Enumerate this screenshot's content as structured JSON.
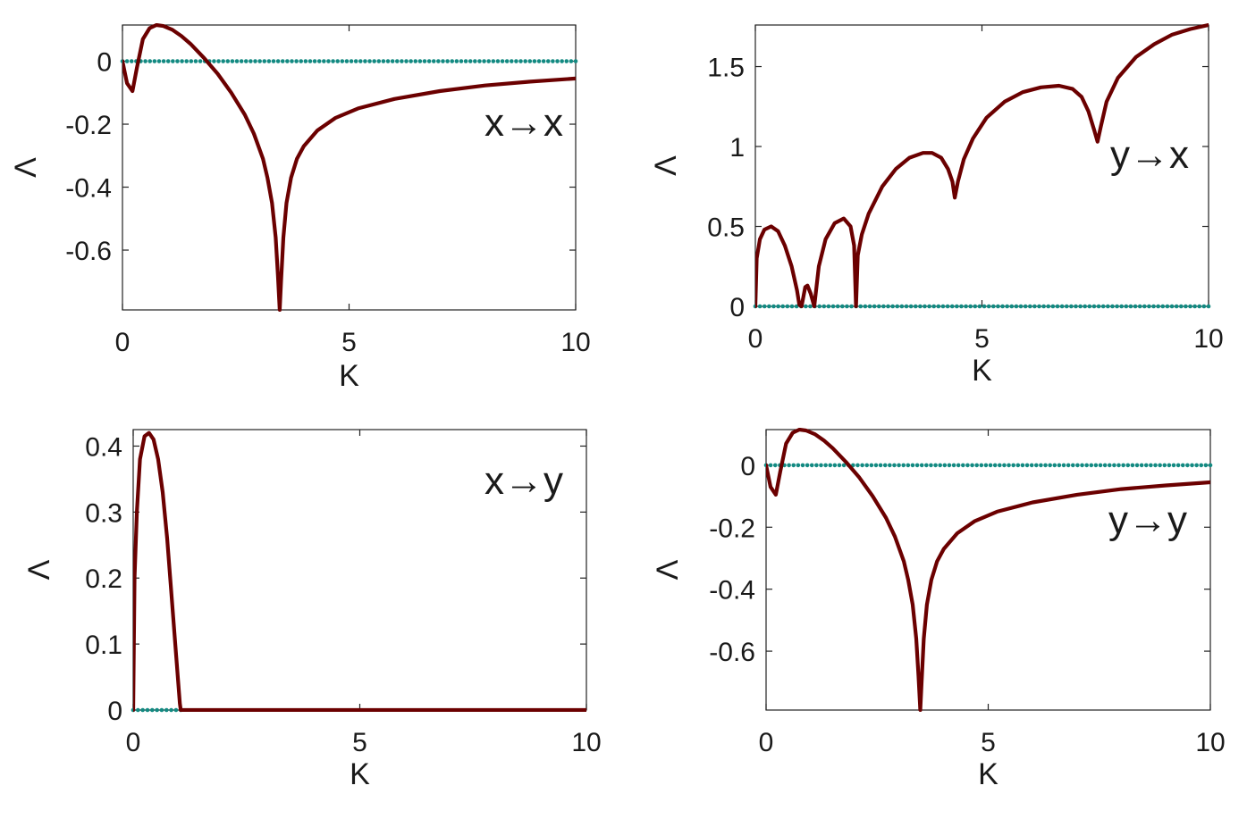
{
  "colors": {
    "curve": "#6b0000",
    "dotted": "#138a82",
    "axis": "#222222"
  },
  "chart_data": [
    {
      "type": "line",
      "label": "x→x",
      "xlabel": "K",
      "ylabel": "Λ",
      "xlim": [
        0,
        10
      ],
      "ylim": [
        -0.79,
        0.115
      ],
      "xticks": [
        0,
        5,
        10
      ],
      "yticks": [
        0,
        -0.2,
        -0.4,
        -0.6
      ],
      "xtick_labels": [
        "0",
        "5",
        "10"
      ],
      "ytick_labels": [
        "0",
        "-0.2",
        "-0.4",
        "-0.6"
      ],
      "grid": false,
      "series": [
        {
          "style": "solid",
          "x": [
            0,
            0.1,
            0.22,
            0.32,
            0.45,
            0.6,
            0.75,
            0.9,
            1.1,
            1.3,
            1.5,
            1.8,
            2.1,
            2.4,
            2.7,
            2.9,
            3.1,
            3.2,
            3.3,
            3.38,
            3.43,
            3.47,
            3.5,
            3.55,
            3.62,
            3.72,
            3.85,
            4.0,
            4.3,
            4.7,
            5.2,
            6,
            7,
            8,
            9,
            10
          ],
          "y": [
            0,
            -0.07,
            -0.095,
            -0.02,
            0.07,
            0.105,
            0.115,
            0.112,
            0.1,
            0.08,
            0.055,
            0.01,
            -0.04,
            -0.1,
            -0.17,
            -0.23,
            -0.31,
            -0.37,
            -0.45,
            -0.56,
            -0.68,
            -0.79,
            -0.7,
            -0.56,
            -0.45,
            -0.37,
            -0.31,
            -0.27,
            -0.22,
            -0.18,
            -0.15,
            -0.12,
            -0.095,
            -0.077,
            -0.065,
            -0.055
          ]
        },
        {
          "style": "dotted",
          "x": [
            0,
            10
          ],
          "y": [
            0,
            0
          ]
        }
      ]
    },
    {
      "type": "line",
      "label": "y→x",
      "xlabel": "K",
      "ylabel": "Λ",
      "xlim": [
        0,
        10
      ],
      "ylim": [
        0,
        1.76
      ],
      "xticks": [
        0,
        5,
        10
      ],
      "yticks": [
        0,
        0.5,
        1,
        1.5
      ],
      "xtick_labels": [
        "0",
        "5",
        "10"
      ],
      "ytick_labels": [
        "0",
        "0.5",
        "1",
        "1.5"
      ],
      "grid": false,
      "series": [
        {
          "style": "solid",
          "x": [
            0,
            0.03,
            0.1,
            0.2,
            0.35,
            0.5,
            0.65,
            0.8,
            0.92,
            0.97,
            1.02,
            1.1,
            1.15,
            1.22,
            1.3,
            1.4,
            1.55,
            1.75,
            1.95,
            2.1,
            2.18,
            2.22,
            2.26,
            2.35,
            2.5,
            2.8,
            3.1,
            3.4,
            3.7,
            3.9,
            4.1,
            4.25,
            4.35,
            4.4,
            4.47,
            4.6,
            4.8,
            5.1,
            5.5,
            5.9,
            6.3,
            6.7,
            7.0,
            7.2,
            7.35,
            7.48,
            7.55,
            7.62,
            7.75,
            8.0,
            8.4,
            8.8,
            9.2,
            9.6,
            10
          ],
          "y": [
            0,
            0.3,
            0.42,
            0.48,
            0.5,
            0.47,
            0.38,
            0.25,
            0.1,
            0.01,
            0.0,
            0.12,
            0.13,
            0.08,
            0.0,
            0.25,
            0.42,
            0.52,
            0.55,
            0.5,
            0.38,
            0.0,
            0.32,
            0.45,
            0.58,
            0.75,
            0.86,
            0.93,
            0.96,
            0.96,
            0.93,
            0.86,
            0.78,
            0.68,
            0.78,
            0.92,
            1.05,
            1.18,
            1.28,
            1.34,
            1.37,
            1.38,
            1.36,
            1.31,
            1.22,
            1.1,
            1.03,
            1.12,
            1.28,
            1.43,
            1.56,
            1.64,
            1.7,
            1.735,
            1.76
          ]
        },
        {
          "style": "dotted",
          "x": [
            0,
            10
          ],
          "y": [
            0,
            0
          ]
        }
      ]
    },
    {
      "type": "line",
      "label": "x→y",
      "xlabel": "K",
      "ylabel": "Λ",
      "xlim": [
        0,
        10
      ],
      "ylim": [
        0,
        0.425
      ],
      "xticks": [
        0,
        5,
        10
      ],
      "yticks": [
        0,
        0.1,
        0.2,
        0.3,
        0.4
      ],
      "xtick_labels": [
        "0",
        "5",
        "10"
      ],
      "ytick_labels": [
        "0",
        "0.1",
        "0.2",
        "0.3",
        "0.4"
      ],
      "grid": false,
      "series": [
        {
          "style": "solid",
          "x": [
            0,
            0.03,
            0.08,
            0.15,
            0.25,
            0.35,
            0.45,
            0.55,
            0.65,
            0.75,
            0.85,
            0.95,
            1.03,
            1.05,
            1.1,
            2,
            4,
            6,
            8,
            10
          ],
          "y": [
            0,
            0.2,
            0.3,
            0.38,
            0.415,
            0.42,
            0.41,
            0.38,
            0.33,
            0.26,
            0.17,
            0.08,
            0.01,
            0,
            0,
            0,
            0,
            0,
            0,
            0
          ]
        },
        {
          "style": "dotted",
          "x": [
            0,
            1.05
          ],
          "y": [
            0,
            0
          ]
        }
      ]
    },
    {
      "type": "line",
      "label": "y→y",
      "xlabel": "K",
      "ylabel": "Λ",
      "xlim": [
        0,
        10
      ],
      "ylim": [
        -0.79,
        0.115
      ],
      "xticks": [
        0,
        5,
        10
      ],
      "yticks": [
        0,
        -0.2,
        -0.4,
        -0.6
      ],
      "xtick_labels": [
        "0",
        "5",
        "10"
      ],
      "ytick_labels": [
        "0",
        "-0.2",
        "-0.4",
        "-0.6"
      ],
      "grid": false,
      "series": [
        {
          "style": "solid",
          "x": [
            0,
            0.1,
            0.22,
            0.32,
            0.45,
            0.6,
            0.75,
            0.9,
            1.1,
            1.3,
            1.5,
            1.8,
            2.1,
            2.4,
            2.7,
            2.9,
            3.1,
            3.2,
            3.3,
            3.38,
            3.43,
            3.47,
            3.5,
            3.55,
            3.62,
            3.72,
            3.85,
            4.0,
            4.3,
            4.7,
            5.2,
            6,
            7,
            8,
            9,
            10
          ],
          "y": [
            0,
            -0.07,
            -0.095,
            -0.02,
            0.07,
            0.105,
            0.115,
            0.112,
            0.1,
            0.08,
            0.055,
            0.01,
            -0.04,
            -0.1,
            -0.17,
            -0.23,
            -0.31,
            -0.37,
            -0.45,
            -0.56,
            -0.68,
            -0.79,
            -0.7,
            -0.56,
            -0.45,
            -0.37,
            -0.31,
            -0.27,
            -0.22,
            -0.18,
            -0.15,
            -0.12,
            -0.095,
            -0.077,
            -0.065,
            -0.055
          ]
        },
        {
          "style": "dotted",
          "x": [
            0,
            10
          ],
          "y": [
            0,
            0
          ]
        }
      ]
    }
  ]
}
